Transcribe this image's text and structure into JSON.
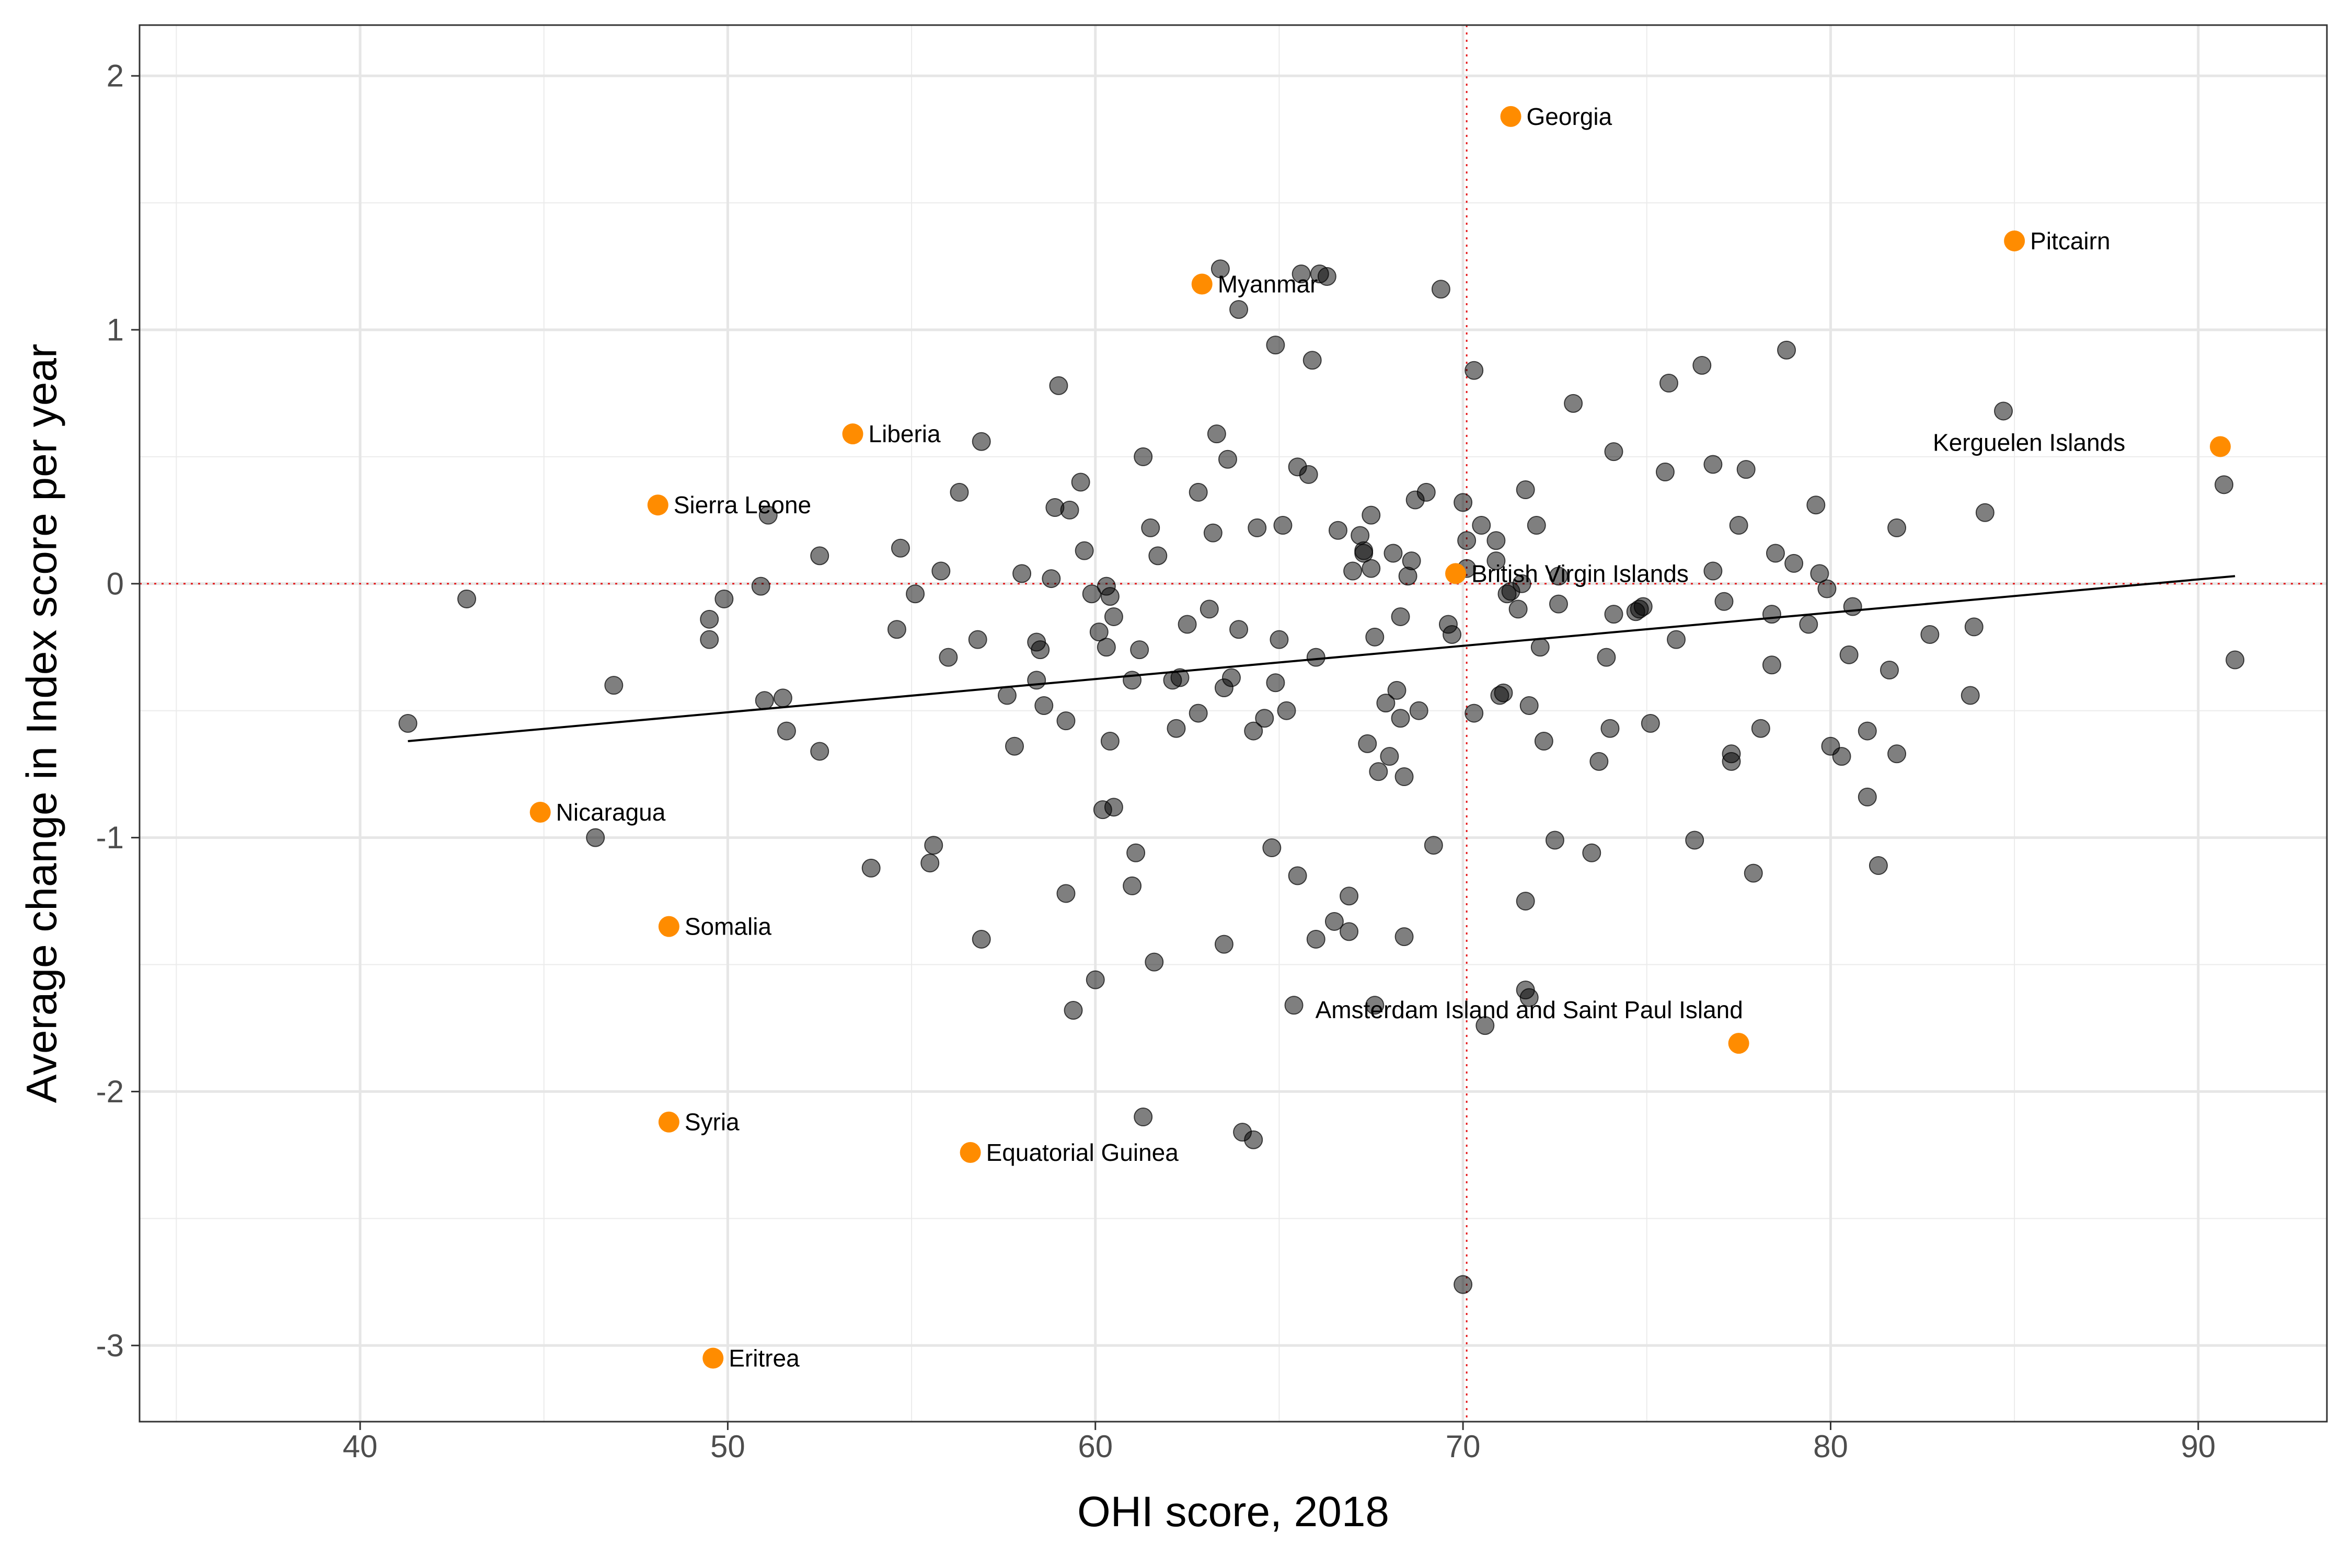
{
  "chart_data": {
    "type": "scatter",
    "xlabel": "OHI score, 2018",
    "ylabel": "Average change in Index score per year",
    "xlim": [
      34,
      93.5
    ],
    "ylim": [
      -3.3,
      2.2
    ],
    "x_ticks": [
      40,
      50,
      60,
      70,
      80,
      90
    ],
    "x_tick_labels": [
      "40",
      "50",
      "60",
      "70",
      "80",
      "90"
    ],
    "y_ticks": [
      2,
      1,
      0,
      -1,
      -2,
      -3
    ],
    "y_tick_labels": [
      "2",
      "1",
      "0",
      "-1",
      "-2",
      "-3"
    ],
    "grid": true,
    "reference_lines": {
      "x": 70.1,
      "y": 0,
      "color": "#e41a1c"
    },
    "trend_line": {
      "x": [
        41.3,
        91.0
      ],
      "y": [
        -0.62,
        0.03
      ]
    },
    "colors": {
      "regular_point": "#000000",
      "highlight_point": "#ff8c00"
    },
    "highlighted_points": [
      {
        "label": "Georgia",
        "x": 71.3,
        "y": 1.84
      },
      {
        "label": "Pitcairn",
        "x": 85.0,
        "y": 1.35
      },
      {
        "label": "Myanmar",
        "x": 62.9,
        "y": 1.18
      },
      {
        "label": "Liberia",
        "x": 53.4,
        "y": 0.59
      },
      {
        "label": "Sierra Leone",
        "x": 48.1,
        "y": 0.31
      },
      {
        "label": "British Virgin Islands",
        "x": 69.8,
        "y": 0.04
      },
      {
        "label": "Kerguelen Islands",
        "x": 90.6,
        "y": 0.54
      },
      {
        "label": "Nicaragua",
        "x": 44.9,
        "y": -0.9
      },
      {
        "label": "Somalia",
        "x": 48.4,
        "y": -1.35
      },
      {
        "label": "Amsterdam Island and Saint Paul Island",
        "x": 77.5,
        "y": -1.81
      },
      {
        "label": "Syria",
        "x": 48.4,
        "y": -2.12
      },
      {
        "label": "Equatorial Guinea",
        "x": 56.6,
        "y": -2.24
      },
      {
        "label": "Eritrea",
        "x": 49.6,
        "y": -3.05
      }
    ],
    "points": [
      [
        41.3,
        -0.55
      ],
      [
        42.9,
        -0.06
      ],
      [
        46.9,
        -0.4
      ],
      [
        46.4,
        -1.0
      ],
      [
        49.5,
        -0.14
      ],
      [
        49.5,
        -0.22
      ],
      [
        49.9,
        -0.06
      ],
      [
        51.1,
        0.27
      ],
      [
        50.9,
        -0.01
      ],
      [
        51.0,
        -0.46
      ],
      [
        51.5,
        -0.45
      ],
      [
        51.6,
        -0.58
      ],
      [
        52.5,
        0.11
      ],
      [
        52.5,
        -0.66
      ],
      [
        53.9,
        -1.12
      ],
      [
        54.6,
        -0.18
      ],
      [
        54.7,
        0.14
      ],
      [
        55.1,
        -0.04
      ],
      [
        55.5,
        -1.1
      ],
      [
        55.6,
        -1.03
      ],
      [
        55.8,
        0.05
      ],
      [
        56.0,
        -0.29
      ],
      [
        56.3,
        0.36
      ],
      [
        56.8,
        -0.22
      ],
      [
        56.9,
        0.56
      ],
      [
        56.9,
        -1.4
      ],
      [
        57.6,
        -0.44
      ],
      [
        57.8,
        -0.64
      ],
      [
        58.0,
        0.04
      ],
      [
        58.4,
        -0.38
      ],
      [
        58.4,
        -0.23
      ],
      [
        58.5,
        -0.26
      ],
      [
        58.6,
        -0.48
      ],
      [
        58.8,
        0.02
      ],
      [
        58.9,
        0.3
      ],
      [
        59.0,
        0.78
      ],
      [
        59.2,
        -0.54
      ],
      [
        59.2,
        -1.22
      ],
      [
        59.3,
        0.29
      ],
      [
        59.4,
        -1.68
      ],
      [
        59.6,
        0.4
      ],
      [
        59.7,
        0.13
      ],
      [
        59.9,
        -0.04
      ],
      [
        60.0,
        -1.56
      ],
      [
        60.1,
        -0.19
      ],
      [
        60.2,
        -0.89
      ],
      [
        60.3,
        -0.25
      ],
      [
        60.3,
        -0.01
      ],
      [
        60.4,
        -0.05
      ],
      [
        60.4,
        -0.62
      ],
      [
        60.5,
        -0.13
      ],
      [
        60.5,
        -0.88
      ],
      [
        61.0,
        -0.38
      ],
      [
        61.0,
        -1.19
      ],
      [
        61.1,
        -1.06
      ],
      [
        61.2,
        -0.26
      ],
      [
        61.3,
        0.5
      ],
      [
        61.3,
        -2.1
      ],
      [
        61.5,
        0.22
      ],
      [
        61.6,
        -1.49
      ],
      [
        61.7,
        0.11
      ],
      [
        62.1,
        -0.38
      ],
      [
        62.2,
        -0.57
      ],
      [
        62.3,
        -0.37
      ],
      [
        62.5,
        -0.16
      ],
      [
        62.8,
        -0.51
      ],
      [
        62.8,
        0.36
      ],
      [
        63.1,
        -0.1
      ],
      [
        63.2,
        0.2
      ],
      [
        63.3,
        0.59
      ],
      [
        63.4,
        1.24
      ],
      [
        63.5,
        -0.41
      ],
      [
        63.5,
        -1.42
      ],
      [
        63.6,
        0.49
      ],
      [
        63.7,
        -0.37
      ],
      [
        63.9,
        1.08
      ],
      [
        63.9,
        -0.18
      ],
      [
        64.0,
        -2.16
      ],
      [
        64.3,
        -2.19
      ],
      [
        64.3,
        -0.58
      ],
      [
        64.4,
        0.22
      ],
      [
        64.6,
        -0.53
      ],
      [
        64.8,
        -1.04
      ],
      [
        64.9,
        0.94
      ],
      [
        64.9,
        -0.39
      ],
      [
        65.0,
        -0.22
      ],
      [
        65.1,
        0.23
      ],
      [
        65.2,
        -0.5
      ],
      [
        65.4,
        -1.66
      ],
      [
        65.5,
        0.46
      ],
      [
        65.5,
        -1.15
      ],
      [
        65.6,
        1.22
      ],
      [
        65.8,
        0.43
      ],
      [
        65.9,
        0.88
      ],
      [
        66.0,
        -0.29
      ],
      [
        66.0,
        -1.4
      ],
      [
        66.1,
        1.22
      ],
      [
        66.3,
        1.21
      ],
      [
        66.5,
        -1.33
      ],
      [
        66.6,
        0.21
      ],
      [
        66.9,
        -1.23
      ],
      [
        66.9,
        -1.37
      ],
      [
        67.0,
        0.05
      ],
      [
        67.2,
        0.19
      ],
      [
        67.3,
        0.12
      ],
      [
        67.3,
        0.13
      ],
      [
        67.4,
        -0.63
      ],
      [
        67.5,
        0.27
      ],
      [
        67.5,
        0.06
      ],
      [
        67.6,
        -0.21
      ],
      [
        67.6,
        -1.66
      ],
      [
        67.7,
        -0.74
      ],
      [
        67.9,
        -0.47
      ],
      [
        68.0,
        -0.68
      ],
      [
        68.1,
        0.12
      ],
      [
        68.2,
        -0.42
      ],
      [
        68.3,
        -0.53
      ],
      [
        68.3,
        -0.13
      ],
      [
        68.4,
        -1.39
      ],
      [
        68.4,
        -0.76
      ],
      [
        68.5,
        0.03
      ],
      [
        68.6,
        0.09
      ],
      [
        68.7,
        0.33
      ],
      [
        68.8,
        -0.5
      ],
      [
        69.0,
        0.36
      ],
      [
        69.2,
        -1.03
      ],
      [
        69.4,
        1.16
      ],
      [
        69.6,
        -0.16
      ],
      [
        69.7,
        -0.2
      ],
      [
        70.0,
        0.32
      ],
      [
        70.0,
        -2.76
      ],
      [
        70.1,
        0.17
      ],
      [
        70.1,
        0.06
      ],
      [
        70.3,
        0.84
      ],
      [
        70.3,
        -0.51
      ],
      [
        70.5,
        0.23
      ],
      [
        70.6,
        -1.74
      ],
      [
        70.9,
        0.17
      ],
      [
        70.9,
        0.09
      ],
      [
        71.0,
        -0.44
      ],
      [
        71.1,
        -0.43
      ],
      [
        71.2,
        -0.04
      ],
      [
        71.3,
        -0.03
      ],
      [
        71.5,
        -0.1
      ],
      [
        71.6,
        0.0
      ],
      [
        71.7,
        0.37
      ],
      [
        71.7,
        -1.25
      ],
      [
        71.7,
        -1.6
      ],
      [
        71.8,
        -1.63
      ],
      [
        71.8,
        -0.48
      ],
      [
        72.0,
        0.23
      ],
      [
        72.1,
        -0.25
      ],
      [
        72.2,
        -0.62
      ],
      [
        72.5,
        -1.01
      ],
      [
        72.6,
        0.03
      ],
      [
        72.6,
        -0.08
      ],
      [
        73.0,
        0.71
      ],
      [
        73.5,
        -1.06
      ],
      [
        73.7,
        -0.7
      ],
      [
        73.9,
        -0.29
      ],
      [
        74.0,
        -0.57
      ],
      [
        74.1,
        -0.12
      ],
      [
        74.1,
        0.52
      ],
      [
        74.7,
        -0.11
      ],
      [
        74.8,
        -0.1
      ],
      [
        74.9,
        -0.09
      ],
      [
        75.1,
        -0.55
      ],
      [
        75.5,
        0.44
      ],
      [
        75.6,
        0.79
      ],
      [
        75.8,
        -0.22
      ],
      [
        76.3,
        -1.01
      ],
      [
        76.5,
        0.86
      ],
      [
        76.8,
        0.47
      ],
      [
        76.8,
        0.05
      ],
      [
        77.1,
        -0.07
      ],
      [
        77.3,
        -0.67
      ],
      [
        77.3,
        -0.7
      ],
      [
        77.5,
        0.23
      ],
      [
        77.7,
        0.45
      ],
      [
        77.9,
        -1.14
      ],
      [
        78.1,
        -0.57
      ],
      [
        78.4,
        -0.12
      ],
      [
        78.4,
        -0.32
      ],
      [
        78.5,
        0.12
      ],
      [
        78.8,
        0.92
      ],
      [
        79.0,
        0.08
      ],
      [
        79.4,
        -0.16
      ],
      [
        79.6,
        0.31
      ],
      [
        79.7,
        0.04
      ],
      [
        79.9,
        -0.02
      ],
      [
        80.0,
        -0.64
      ],
      [
        80.3,
        -0.68
      ],
      [
        80.5,
        -0.28
      ],
      [
        80.6,
        -0.09
      ],
      [
        81.0,
        -0.84
      ],
      [
        81.0,
        -0.58
      ],
      [
        81.3,
        -1.11
      ],
      [
        81.6,
        -0.34
      ],
      [
        81.8,
        0.22
      ],
      [
        81.8,
        -0.67
      ],
      [
        82.7,
        -0.2
      ],
      [
        83.8,
        -0.44
      ],
      [
        83.9,
        -0.17
      ],
      [
        84.2,
        0.28
      ],
      [
        84.7,
        0.68
      ],
      [
        90.7,
        0.39
      ],
      [
        91.0,
        -0.3
      ]
    ]
  }
}
